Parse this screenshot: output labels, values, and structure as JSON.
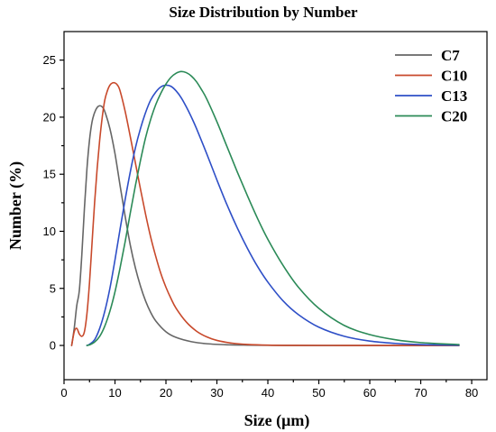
{
  "chart_data": {
    "type": "line",
    "title": "Size Distribution by Number",
    "xlabel": "Size (μm)",
    "ylabel": "Number (%)",
    "xlim": [
      0,
      83
    ],
    "ylim": [
      -3,
      27.5
    ],
    "xticks": [
      0,
      10,
      20,
      30,
      40,
      50,
      60,
      70,
      80
    ],
    "yticks": [
      0,
      5,
      10,
      15,
      20,
      25
    ],
    "legend_position": "top-right",
    "grid": false,
    "series": [
      {
        "name": "C7",
        "color": "#666666",
        "x": [
          1.5,
          2,
          2.5,
          3,
          3.5,
          4,
          4.5,
          5,
          5.5,
          6,
          6.5,
          7,
          7.5,
          8,
          9,
          10,
          11,
          12,
          13,
          14,
          15,
          16,
          17,
          18,
          20,
          22,
          25,
          28,
          32,
          36,
          42,
          50,
          60,
          70,
          77.5
        ],
        "values": [
          0,
          1.5,
          3.5,
          4.8,
          8,
          12,
          15.5,
          18,
          19.6,
          20.4,
          20.85,
          21,
          20.9,
          20.5,
          19,
          16.8,
          14,
          11.3,
          8.8,
          6.8,
          5.2,
          3.9,
          2.9,
          2.15,
          1.2,
          0.7,
          0.33,
          0.15,
          0.06,
          0.03,
          0.01,
          0,
          0,
          0,
          0
        ]
      },
      {
        "name": "C10",
        "color": "#c8492b",
        "x": [
          1.5,
          2,
          2.5,
          3,
          3.5,
          4,
          4.5,
          5,
          5.5,
          6,
          6.5,
          7,
          7.5,
          8,
          8.5,
          9,
          9.5,
          10,
          10.5,
          11,
          12,
          13,
          14,
          15,
          16,
          17,
          18,
          19,
          20,
          21,
          22,
          24,
          26,
          28,
          30,
          33,
          36,
          40,
          45,
          55,
          65,
          77.5
        ],
        "values": [
          0,
          1.2,
          1.5,
          1.0,
          0.8,
          1.2,
          2.8,
          5.5,
          9,
          12.5,
          15.5,
          18,
          20,
          21.5,
          22.3,
          22.8,
          23,
          23,
          22.8,
          22.3,
          20.5,
          18.3,
          16,
          13.7,
          11.5,
          9.5,
          7.8,
          6.3,
          5.1,
          4.1,
          3.25,
          2.05,
          1.25,
          0.75,
          0.44,
          0.2,
          0.09,
          0.03,
          0.01,
          0,
          0,
          0
        ]
      },
      {
        "name": "C13",
        "color": "#2e4fc7",
        "x": [
          4.5,
          5,
          6,
          7,
          8,
          9,
          10,
          11,
          12,
          13,
          14,
          15,
          16,
          17,
          18,
          19,
          20,
          21,
          22,
          23,
          24,
          25,
          26,
          28,
          30,
          32,
          34,
          36,
          38,
          40,
          43,
          46,
          50,
          55,
          60,
          65,
          70,
          77.5
        ],
        "values": [
          0,
          0.1,
          0.5,
          1.5,
          3,
          5,
          7.5,
          10.2,
          12.8,
          15.2,
          17.3,
          19,
          20.4,
          21.5,
          22.2,
          22.65,
          22.8,
          22.7,
          22.3,
          21.7,
          20.9,
          20,
          19,
          16.8,
          14.5,
          12.3,
          10.3,
          8.5,
          6.9,
          5.55,
          3.9,
          2.7,
          1.6,
          0.8,
          0.38,
          0.18,
          0.08,
          0.02
        ]
      },
      {
        "name": "C20",
        "color": "#2b8a57",
        "x": [
          4.5,
          5,
          6,
          7,
          8,
          9,
          10,
          11,
          12,
          13,
          14,
          15,
          16,
          17,
          18,
          19,
          20,
          21,
          22,
          23,
          24,
          25,
          26,
          27,
          28,
          30,
          32,
          34,
          36,
          38,
          40,
          43,
          46,
          50,
          55,
          60,
          65,
          70,
          77.5
        ],
        "values": [
          0,
          0.05,
          0.3,
          0.8,
          1.7,
          3,
          4.7,
          6.8,
          9.1,
          11.6,
          14,
          16.2,
          18.2,
          19.8,
          21.1,
          22.1,
          22.9,
          23.5,
          23.85,
          24,
          23.9,
          23.6,
          23.1,
          22.4,
          21.6,
          19.6,
          17.4,
          15.2,
          13.1,
          11.1,
          9.3,
          7,
          5.1,
          3.25,
          1.75,
          0.95,
          0.5,
          0.25,
          0.08
        ]
      }
    ]
  }
}
